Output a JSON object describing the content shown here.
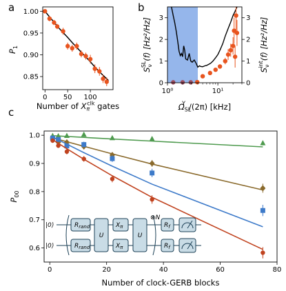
{
  "panel_labels": [
    "a",
    "b",
    "c"
  ],
  "chart_data": [
    {
      "panel": "a",
      "type": "scatter",
      "xlabel_parts": {
        "pre": "Number of ",
        "var": "X",
        "sub": "π",
        "sup": "clk",
        "post": " gates"
      },
      "ylabel_parts": {
        "var": "P",
        "sub": "1"
      },
      "xlim": [
        -5,
        150
      ],
      "ylim": [
        0.82,
        1.01
      ],
      "xticks": [
        0,
        50,
        100
      ],
      "xtick_labels": [
        "0",
        "50",
        "100"
      ],
      "yticks": [
        0.85,
        0.9,
        0.95,
        1.0
      ],
      "ytick_labels": [
        "0.85",
        "0.90",
        "0.95",
        "1.00"
      ],
      "series": [
        {
          "style": "points",
          "color": "#e8541e",
          "x": [
            0,
            10,
            20,
            27,
            40,
            50,
            60,
            70,
            80,
            90,
            100,
            110,
            120,
            128,
            136
          ],
          "y": [
            1.0,
            0.983,
            0.974,
            0.965,
            0.954,
            0.92,
            0.915,
            0.92,
            0.902,
            0.897,
            0.89,
            0.868,
            0.862,
            0.845,
            0.838
          ],
          "yerr": [
            0.004,
            0.006,
            0.006,
            0.006,
            0.008,
            0.008,
            0.008,
            0.008,
            0.008,
            0.008,
            0.01,
            0.01,
            0.01,
            0.01,
            0.01
          ]
        },
        {
          "style": "line",
          "color": "#000000",
          "x": [
            0,
            10,
            20,
            30,
            40,
            50,
            60,
            70,
            80,
            90,
            100,
            110,
            120,
            130,
            140
          ],
          "y": [
            1.0,
            0.987,
            0.975,
            0.962,
            0.951,
            0.94,
            0.928,
            0.917,
            0.906,
            0.895,
            0.884,
            0.872,
            0.861,
            0.851,
            0.841
          ]
        }
      ]
    },
    {
      "panel": "b",
      "type": "line",
      "xscale": "log",
      "xlabel_parts": {
        "var": "Ω",
        "sub": "SL",
        "sup": "Y",
        "post": "/(2π) [kHz]"
      },
      "ylabel_left_parts": {
        "var": "S",
        "sub": "ν",
        "sup": "SL",
        "post": "(f) [Hz²/Hz]"
      },
      "ylabel_right_parts": {
        "var": "S",
        "sub": "ν",
        "sup": "int",
        "post": "(f) [Hz²/Hz]"
      },
      "xlim": [
        1,
        30
      ],
      "ylim": [
        0,
        3.5
      ],
      "xticks": [
        1,
        10
      ],
      "xtick_labels": [
        "10⁰",
        "10¹"
      ],
      "yticks_left": [
        0,
        1,
        2,
        3
      ],
      "ytick_labels_left": [
        "0",
        "1",
        "2",
        "3"
      ],
      "yticks_right": [
        0,
        1,
        2,
        3
      ],
      "ytick_labels_right": [
        "0",
        "1",
        "2",
        "3"
      ],
      "shaded_band": {
        "x": [
          1,
          4
        ],
        "color": "#7ba4e6"
      },
      "series": [
        {
          "style": "line",
          "color": "#000000",
          "x": [
            1.2,
            1.3,
            1.4,
            1.5,
            1.6,
            1.7,
            1.8,
            1.9,
            2.0,
            2.1,
            2.2,
            2.3,
            2.5,
            2.7,
            2.9,
            3.1,
            3.4,
            3.7,
            4.0,
            4.3,
            4.6,
            5.0,
            5.5,
            6.0,
            6.6,
            7.2,
            8.0,
            9.0,
            10.0,
            11.0,
            12.5,
            14.0,
            16.0,
            18.0,
            20.0,
            22.0,
            24.0
          ],
          "y": [
            3.5,
            3.1,
            2.75,
            2.35,
            1.9,
            1.45,
            1.25,
            1.35,
            1.2,
            1.7,
            1.5,
            1.1,
            1.05,
            1.35,
            1.0,
            0.95,
            1.05,
            0.9,
            0.72,
            0.78,
            0.75,
            0.74,
            0.78,
            0.8,
            0.85,
            0.9,
            1.0,
            1.15,
            1.3,
            1.5,
            1.8,
            2.15,
            2.5,
            2.8,
            3.1,
            3.3,
            3.5
          ]
        },
        {
          "style": "points",
          "color": "#e8541e",
          "x": [
            3.9,
            5.0,
            7.0,
            9.0,
            11.0,
            14.0,
            16.0,
            18.0,
            20.0,
            21.0,
            22.0,
            23.0,
            24.0
          ],
          "y": [
            0.03,
            0.3,
            0.45,
            0.6,
            0.75,
            1.0,
            1.3,
            1.5,
            1.7,
            2.4,
            1.2,
            3.1,
            2.3
          ],
          "yerr": [
            0.02,
            0.05,
            0.05,
            0.08,
            0.1,
            0.15,
            0.25,
            0.3,
            0.4,
            0.6,
            0.5,
            0.7,
            0.6
          ]
        },
        {
          "style": "points",
          "color": "#9b4d5e",
          "x": [
            1.3,
            2.0,
            2.9
          ],
          "y": [
            0.02,
            0.02,
            0.02
          ]
        }
      ]
    },
    {
      "panel": "c",
      "type": "scatter",
      "xlabel": "Number of clock-GERB blocks",
      "ylabel_parts": {
        "var": "P",
        "sub": "00"
      },
      "xlim": [
        -2,
        80
      ],
      "ylim": [
        0.55,
        1.015
      ],
      "xticks": [
        0,
        20,
        40,
        60,
        80
      ],
      "xtick_labels": [
        "0",
        "20",
        "40",
        "60",
        "80"
      ],
      "yticks": [
        0.6,
        0.7,
        0.8,
        0.9,
        1.0
      ],
      "ytick_labels": [
        "0.6",
        "0.7",
        "0.8",
        "0.9",
        "1.0"
      ],
      "series": [
        {
          "marker": "triangle",
          "color": "#4e9a4e",
          "x": [
            1,
            3,
            6,
            12,
            22,
            36,
            75
          ],
          "y": [
            0.998,
            0.997,
            0.998,
            1.002,
            0.99,
            0.987,
            0.972
          ],
          "yerr": [
            0.003,
            0.003,
            0.004,
            0.004,
            0.005,
            0.005,
            0.008
          ],
          "fit_y": [
            0.9985,
            0.9974,
            0.9957,
            0.9924,
            0.9868,
            0.9792,
            0.9587
          ]
        },
        {
          "marker": "diamond",
          "color": "#8a6a2c",
          "x": [
            1,
            3,
            6,
            12,
            22,
            36,
            75
          ],
          "y": [
            0.987,
            0.975,
            0.975,
            0.96,
            0.93,
            0.9,
            0.812
          ],
          "yerr": [
            0.006,
            0.006,
            0.006,
            0.008,
            0.01,
            0.012,
            0.016
          ],
          "fit_y": [
            0.9912,
            0.9854,
            0.9771,
            0.9607,
            0.934,
            0.8977,
            0.8057
          ]
        },
        {
          "marker": "square",
          "color": "#3d7ac9",
          "x": [
            1,
            3,
            6,
            12,
            22,
            36,
            75
          ],
          "y": [
            0.99,
            0.985,
            0.962,
            0.967,
            0.917,
            0.866,
            0.733
          ],
          "yerr": [
            0.006,
            0.006,
            0.008,
            0.01,
            0.012,
            0.015,
            0.02
          ],
          "fit_y": [
            0.9939,
            0.9836,
            0.9683,
            0.9382,
            0.8901,
            0.8264,
            0.6751
          ]
        },
        {
          "marker": "circle",
          "color": "#c0421e",
          "x": [
            1,
            3,
            6,
            12,
            22,
            36,
            75
          ],
          "y": [
            0.981,
            0.963,
            0.942,
            0.916,
            0.845,
            0.772,
            0.583
          ],
          "yerr": [
            0.008,
            0.008,
            0.01,
            0.01,
            0.012,
            0.015,
            0.02
          ],
          "fit_y": [
            0.9844,
            0.9714,
            0.9522,
            0.9149,
            0.8562,
            0.7797,
            0.5948
          ]
        }
      ]
    }
  ],
  "circuit": {
    "ket_top": "|0⟩",
    "ket_bottom": "|0⟩",
    "r_rand": "R",
    "r_rand_sub": "rand",
    "u_label": "U",
    "x_label": "X",
    "x_sub": "π",
    "repeat_symbol": "⊗",
    "repeat_n": "N",
    "r_final": "R",
    "r_final_sub": "f",
    "box_fill": "#c9dce6",
    "line_color": "#1b3f55"
  }
}
